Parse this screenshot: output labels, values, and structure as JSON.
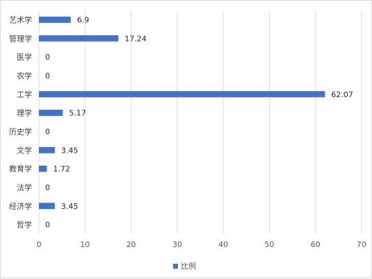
{
  "chart_data": {
    "type": "bar",
    "orientation": "horizontal",
    "categories": [
      "艺术学",
      "管理学",
      "医学",
      "农学",
      "工学",
      "理学",
      "历史学",
      "文学",
      "教育学",
      "法学",
      "经济学",
      "哲学"
    ],
    "series": [
      {
        "name": "比例",
        "values": [
          6.9,
          17.24,
          0,
          0,
          62.07,
          5.17,
          0,
          3.45,
          1.72,
          0,
          3.45,
          0
        ],
        "color": "#4472c4"
      }
    ],
    "data_labels": [
      "6.9",
      "17.24",
      "0",
      "0",
      "62.07",
      "5.17",
      "0",
      "3.45",
      "1.72",
      "0",
      "3.45",
      "0"
    ],
    "xlim": [
      0,
      70
    ],
    "xticks": [
      0,
      10,
      20,
      30,
      40,
      50,
      60,
      70
    ],
    "grid": true,
    "legend": "bottom"
  }
}
